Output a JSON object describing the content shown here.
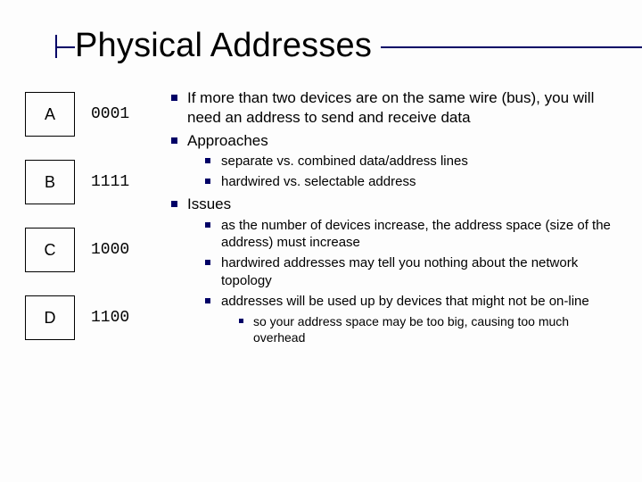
{
  "title": "Physical Addresses",
  "accent_color": "#000066",
  "devices": [
    {
      "label": "A",
      "address": "0001"
    },
    {
      "label": "B",
      "address": "1111"
    },
    {
      "label": "C",
      "address": "1000"
    },
    {
      "label": "D",
      "address": "1100"
    }
  ],
  "bullets": {
    "b1": "If more than two devices are on the same wire (bus), you will need an address to send and receive data",
    "b2": "Approaches",
    "b2_1": "separate vs. combined data/address lines",
    "b2_2": "hardwired vs. selectable address",
    "b3": "Issues",
    "b3_1": "as the number of devices increase, the address space (size of the address) must increase",
    "b3_2": "hardwired addresses may tell you nothing about the network topology",
    "b3_3": "addresses will be used up by devices that might not be on-line",
    "b3_3_1": "so your address space may be too big, causing too much overhead"
  }
}
